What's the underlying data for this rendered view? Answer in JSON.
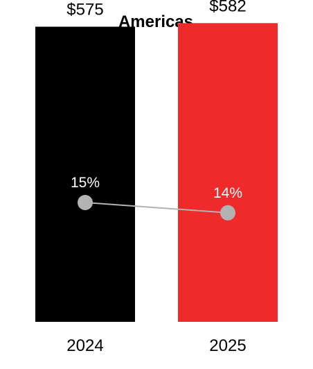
{
  "chart_data": {
    "type": "bar",
    "title": "Americas",
    "categories": [
      "2024",
      "2025"
    ],
    "series": [
      {
        "values": [
          575,
          582
        ],
        "value_labels": [
          "$575",
          "$582"
        ],
        "colors": [
          "#000000",
          "#ee2a2a"
        ]
      },
      {
        "type": "line",
        "values": [
          15,
          14
        ],
        "value_labels": [
          "15%",
          "14%"
        ],
        "color": "#b3b3b3"
      }
    ],
    "xlabel": "",
    "ylabel": "",
    "ylim": [
      0,
      600
    ],
    "y2lim": [
      0,
      30
    ],
    "grid": false,
    "legend": "none"
  }
}
